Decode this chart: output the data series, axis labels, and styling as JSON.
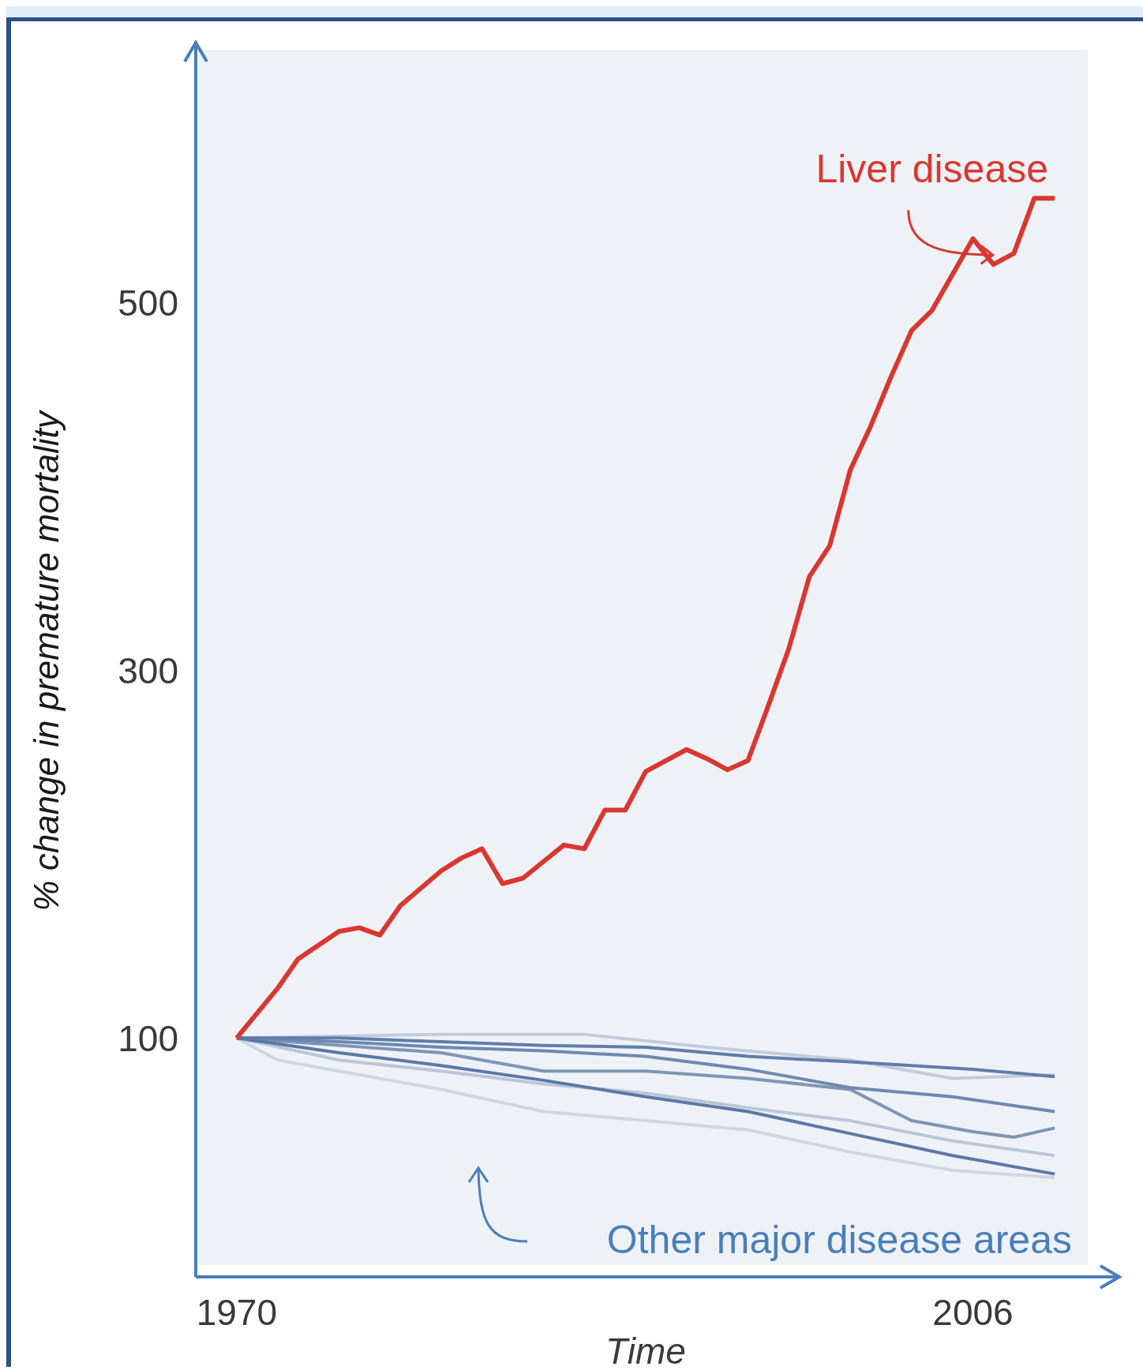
{
  "chart_data": {
    "type": "line",
    "ylabel": "% change in premature mortality",
    "xlabel": "Time",
    "xlim": [
      1968,
      2012
    ],
    "xticks": [
      1970,
      2006
    ],
    "ylim": [
      -30,
      640
    ],
    "yticks": [
      100,
      300,
      500
    ],
    "annotations": [
      "Other major disease areas"
    ],
    "series": [
      {
        "name": "Liver disease",
        "color": "#d9372f",
        "x": [
          1970,
          1972,
          1973,
          1975,
          1976,
          1977,
          1978,
          1980,
          1981,
          1982,
          1983,
          1984,
          1985,
          1986,
          1987,
          1988,
          1989,
          1990,
          1992,
          1993,
          1994,
          1995,
          1996,
          1997,
          1998,
          1999,
          2000,
          2001,
          2002,
          2003,
          2004,
          2006,
          2007,
          2008,
          2009,
          2010
        ],
        "values": [
          100,
          127,
          143,
          158,
          160,
          156,
          172,
          191,
          198,
          203,
          184,
          187,
          196,
          205,
          203,
          224,
          224,
          245,
          257,
          252,
          246,
          251,
          281,
          312,
          351,
          368,
          409,
          433,
          460,
          485,
          496,
          535,
          521,
          527,
          557,
          557
        ]
      },
      {
        "color": "#cfd6e2",
        "x": [
          1970,
          1972,
          1975,
          1980,
          1985,
          1990,
          1995,
          2000,
          2005,
          2010
        ],
        "values": [
          100,
          88,
          82,
          72,
          60,
          55,
          50,
          38,
          28,
          24
        ]
      },
      {
        "color": "#bcc6d6",
        "x": [
          1970,
          1975,
          1980,
          1985,
          1990,
          1995,
          2000,
          2005,
          2010
        ],
        "values": [
          100,
          88,
          82,
          75,
          70,
          62,
          55,
          44,
          36
        ]
      },
      {
        "color": "#c3ccda",
        "x": [
          1970,
          1980,
          1987,
          1993,
          2000,
          2005,
          2010
        ],
        "values": [
          100,
          102,
          102,
          95,
          88,
          78,
          80
        ]
      },
      {
        "color": "#8194b4",
        "x": [
          1970,
          1975,
          1980,
          1985,
          1990,
          1995,
          2000,
          2003,
          2006,
          2008,
          2010
        ],
        "values": [
          100,
          96,
          92,
          82,
          82,
          78,
          72,
          55,
          49,
          46,
          51
        ]
      },
      {
        "color": "#6f88b0",
        "x": [
          1970,
          1975,
          1980,
          1985,
          1990,
          1995,
          2000,
          2005,
          2010
        ],
        "values": [
          100,
          98,
          95,
          93,
          90,
          83,
          73,
          68,
          60
        ]
      },
      {
        "color": "#5f7dab",
        "x": [
          1970,
          1975,
          1980,
          1985,
          1990,
          1995,
          2000,
          2003,
          2006,
          2010
        ],
        "values": [
          100,
          100,
          98,
          96,
          95,
          90,
          87,
          85,
          83,
          79
        ]
      },
      {
        "color": "#5a78a6",
        "x": [
          1970,
          1975,
          1980,
          1985,
          1990,
          1995,
          2000,
          2005,
          2010
        ],
        "values": [
          100,
          92,
          85,
          77,
          68,
          60,
          48,
          36,
          26
        ]
      }
    ]
  }
}
